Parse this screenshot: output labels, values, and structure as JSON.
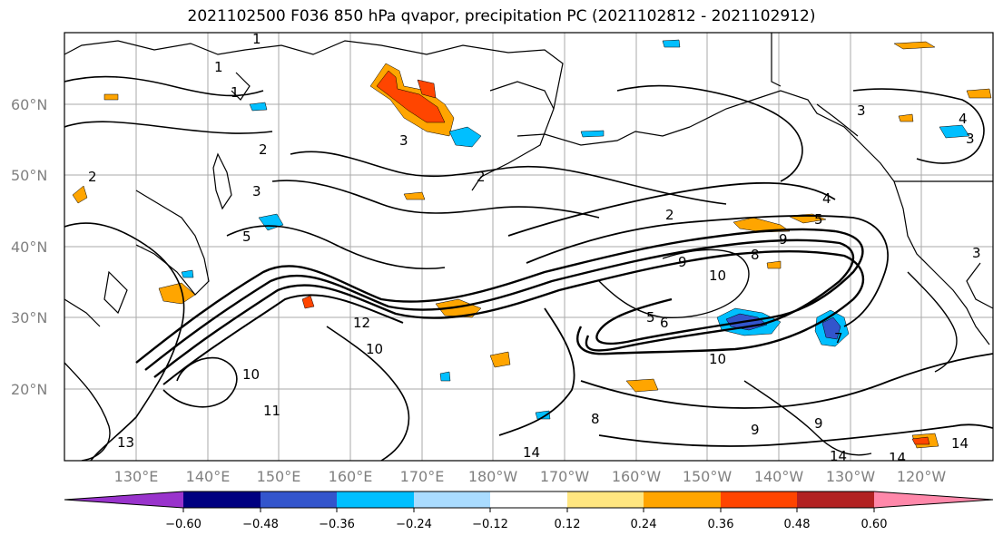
{
  "title": "2021102500 F036 850 hPa qvapor, precipitation PC (2021102812 - 2021102912)",
  "lat_labels": [
    "60°N",
    "50°N",
    "40°N",
    "30°N",
    "20°N"
  ],
  "lon_labels": [
    "130°E",
    "140°E",
    "150°E",
    "160°E",
    "170°E",
    "180°W",
    "170°W",
    "160°W",
    "150°W",
    "140°W",
    "130°W",
    "120°W"
  ],
  "colorbar": {
    "colors": [
      "#9933cc",
      "#000080",
      "#3355cc",
      "#00bfff",
      "#aadcff",
      "#ffffff",
      "#ffe680",
      "#ffa500",
      "#ff4500",
      "#b22222",
      "#ff88aa"
    ],
    "ticks": [
      "−0.60",
      "−0.48",
      "−0.36",
      "−0.24",
      "−0.12",
      "0.12",
      "0.24",
      "0.36",
      "0.48",
      "0.60"
    ]
  },
  "contour_labels": [
    "1",
    "1",
    "1",
    "2",
    "2",
    "2",
    "2",
    "3",
    "3",
    "3",
    "3",
    "3",
    "4",
    "4",
    "5",
    "5",
    "5",
    "6",
    "7",
    "8",
    "8",
    "9",
    "9",
    "9",
    "9",
    "10",
    "10",
    "10",
    "10",
    "11",
    "12",
    "13",
    "14",
    "14",
    "14",
    "14"
  ],
  "colors": {
    "grid": "#aaaaaa",
    "contour": "#000000",
    "axis_text": "#808080"
  }
}
